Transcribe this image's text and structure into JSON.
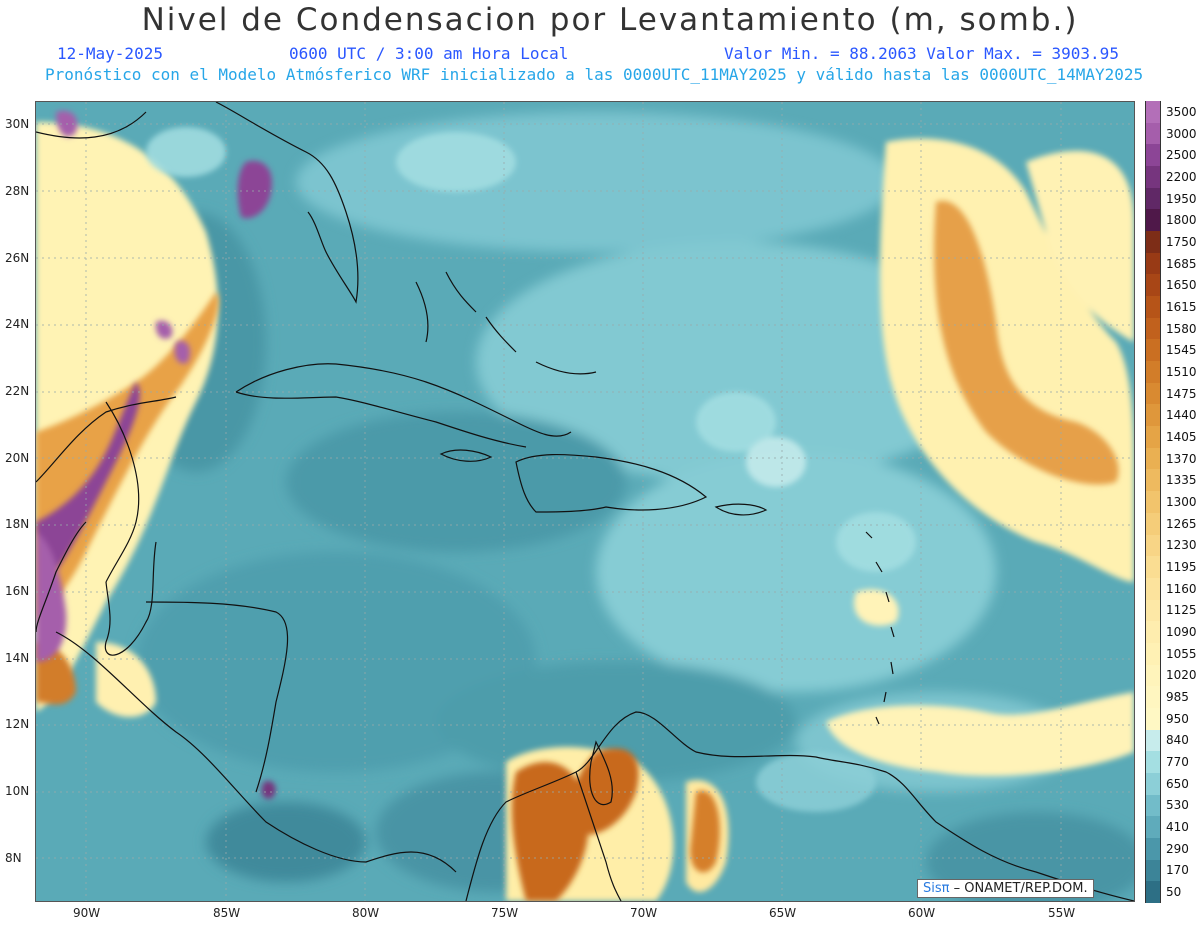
{
  "header": {
    "title": "Nivel de Condensacion por Levantamiento (m, somb.)",
    "date": "12-May-2025",
    "time": "0600 UTC / 3:00 am Hora Local",
    "minmax": "Valor Min. = 88.2063  Valor Max. = 3903.95",
    "model_line": "Pronóstico con el Modelo Atmósferico WRF inicializado a las 0000UTC_11MAY2025 y válido hasta las  0000UTC_14MAY2025"
  },
  "axes": {
    "lat_labels": [
      "30N",
      "28N",
      "26N",
      "24N",
      "22N",
      "20N",
      "18N",
      "16N",
      "14N",
      "12N",
      "10N",
      "8N"
    ],
    "lon_labels": [
      "90W",
      "85W",
      "80W",
      "75W",
      "70W",
      "65W",
      "60W",
      "55W"
    ]
  },
  "legend": {
    "labels": [
      "3500",
      "3000",
      "2500",
      "2200",
      "1950",
      "1800",
      "1750",
      "1685",
      "1650",
      "1615",
      "1580",
      "1545",
      "1510",
      "1475",
      "1440",
      "1405",
      "1370",
      "1335",
      "1300",
      "1265",
      "1230",
      "1195",
      "1160",
      "1125",
      "1090",
      "1055",
      "1020",
      "985",
      "950",
      "840",
      "770",
      "650",
      "530",
      "410",
      "290",
      "170",
      "50"
    ],
    "colors": [
      "#b36fb8",
      "#a55eab",
      "#8c4596",
      "#76357e",
      "#602866",
      "#4f1849",
      "#7d2d17",
      "#983a15",
      "#a84616",
      "#b65418",
      "#c1611d",
      "#ca6f22",
      "#d27d29",
      "#d98a31",
      "#df973b",
      "#e5a446",
      "#eab052",
      "#eeba5f",
      "#f2c46c",
      "#f5cd79",
      "#f8d586",
      "#fadd92",
      "#fce39d",
      "#fde8a6",
      "#feedae",
      "#fff1b4",
      "#fff4bb",
      "#fff6c0",
      "#fff8c4",
      "#c7ecec",
      "#a4dfe2",
      "#8ccfd7",
      "#72bcc9",
      "#5fabbb",
      "#4b97aa",
      "#3c8498",
      "#2d6f85"
    ]
  },
  "credit": {
    "sis": "Sisπ",
    "text": "– ONAMET/REP.DOM."
  },
  "colors": {
    "ocean_base": "#5aaab7",
    "coast": "#111111"
  }
}
